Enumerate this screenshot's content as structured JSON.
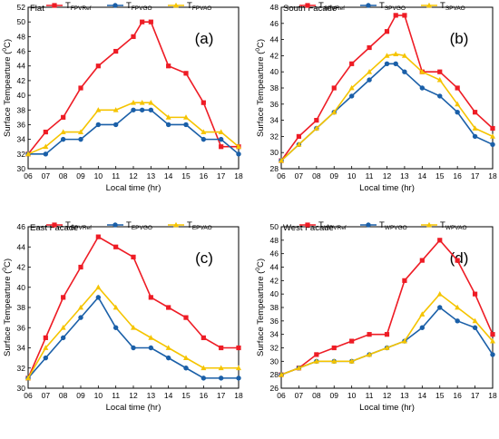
{
  "chart_data": [
    {
      "type": "line",
      "panel_label": "(a)",
      "corner_title": "Flat",
      "xlabel": "Local time (hr)",
      "ylabel": "Surface Tempearture (°C)",
      "ylabel_parts": [
        "Surface Tempearture (",
        "0",
        "C)"
      ],
      "xlim": [
        6,
        18
      ],
      "ylim": [
        30,
        52
      ],
      "yticks": [
        30,
        32,
        34,
        36,
        38,
        40,
        42,
        44,
        46,
        48,
        50,
        52
      ],
      "x": [
        6,
        7,
        8,
        9,
        10,
        11,
        12,
        12.5,
        13,
        14,
        15,
        16,
        17,
        18
      ],
      "xtick_labels": [
        "06",
        "07",
        "08",
        "09",
        "10",
        "11",
        "12",
        "13",
        "14",
        "15",
        "16",
        "17",
        "18"
      ],
      "series": [
        {
          "name": "TFPVRef",
          "label_base": "T",
          "label_sub": "FPVRef",
          "color": "#ee1c25",
          "marker": "square",
          "values": [
            32,
            35,
            37,
            41,
            44,
            46,
            48,
            50,
            50,
            44,
            43,
            39,
            33,
            33
          ]
        },
        {
          "name": "TFPVGO",
          "label_base": "T",
          "label_sub": "FPVGO",
          "color": "#1a5fa8",
          "marker": "circle",
          "values": [
            32,
            32,
            34,
            34,
            36,
            36,
            38,
            38,
            38,
            36,
            36,
            34,
            34,
            32
          ]
        },
        {
          "name": "TFPVAO",
          "label_base": "T",
          "label_sub": "FPVAO",
          "color": "#f5c400",
          "marker": "triangle",
          "values": [
            32,
            33,
            35,
            35,
            38,
            38,
            39,
            39,
            39,
            37,
            37,
            35,
            35,
            33
          ]
        }
      ]
    },
    {
      "type": "line",
      "panel_label": "(b)",
      "corner_title": "South Facade",
      "xlabel": "Local time (hr)",
      "ylabel": "Surface Tempearture (°C)",
      "ylabel_parts": [
        "Surface Tempearture (",
        "0",
        "C)"
      ],
      "xlim": [
        6,
        18
      ],
      "ylim": [
        28,
        48
      ],
      "yticks": [
        28,
        30,
        32,
        34,
        36,
        38,
        40,
        42,
        44,
        46,
        48
      ],
      "x": [
        6,
        7,
        8,
        9,
        10,
        11,
        12,
        12.5,
        13,
        14,
        15,
        16,
        17,
        18
      ],
      "xtick_labels": [
        "06",
        "07",
        "08",
        "09",
        "10",
        "11",
        "12",
        "13",
        "14",
        "15",
        "16",
        "17",
        "18"
      ],
      "series": [
        {
          "name": "TSPVRef",
          "label_base": "T",
          "label_sub": "SPVRef",
          "color": "#ee1c25",
          "marker": "square",
          "values": [
            29,
            32,
            34,
            38,
            41,
            43,
            45,
            47,
            47,
            40,
            40,
            38,
            35,
            33
          ]
        },
        {
          "name": "TSPVGO",
          "label_base": "T",
          "label_sub": "SPVGO",
          "color": "#1a5fa8",
          "marker": "circle",
          "values": [
            29,
            31,
            33,
            35,
            37,
            39,
            41,
            41,
            40,
            38,
            37,
            35,
            32,
            31
          ]
        },
        {
          "name": "TSPVAO",
          "label_base": "T",
          "label_sub": "SPVAO",
          "color": "#f5c400",
          "marker": "triangle",
          "values": [
            29,
            31,
            33,
            35,
            38,
            40,
            42,
            42.2,
            42,
            40,
            39,
            36,
            33,
            32
          ]
        }
      ]
    },
    {
      "type": "line",
      "panel_label": "(c)",
      "corner_title": "East Facade",
      "xlabel": "Local time (hr)",
      "ylabel": "Surface Tempearture (°C)",
      "ylabel_parts": [
        "Surface Tempearture (",
        "0",
        "C)"
      ],
      "xlim": [
        6,
        18
      ],
      "ylim": [
        30,
        46
      ],
      "yticks": [
        30,
        32,
        34,
        36,
        38,
        40,
        42,
        44,
        46
      ],
      "x": [
        6,
        7,
        8,
        9,
        10,
        11,
        12,
        13,
        14,
        15,
        16,
        17,
        18
      ],
      "xtick_labels": [
        "06",
        "07",
        "08",
        "09",
        "10",
        "11",
        "12",
        "13",
        "14",
        "15",
        "16",
        "17",
        "18"
      ],
      "series": [
        {
          "name": "TEPVRef",
          "label_base": "T",
          "label_sub": "EPVRef",
          "color": "#ee1c25",
          "marker": "square",
          "values": [
            31,
            35,
            39,
            42,
            45,
            44,
            43,
            39,
            38,
            37,
            35,
            34,
            34
          ]
        },
        {
          "name": "TEPVGO",
          "label_base": "T",
          "label_sub": "EPVGO",
          "color": "#1a5fa8",
          "marker": "circle",
          "values": [
            31,
            33,
            35,
            37,
            39,
            36,
            34,
            34,
            33,
            32,
            31,
            31,
            31
          ]
        },
        {
          "name": "TEPVAO",
          "label_base": "T",
          "label_sub": "EPVAO",
          "color": "#f5c400",
          "marker": "triangle",
          "values": [
            31,
            34,
            36,
            38,
            40,
            38,
            36,
            35,
            34,
            33,
            32,
            32,
            32
          ]
        }
      ]
    },
    {
      "type": "line",
      "panel_label": "(d)",
      "corner_title": "West Facade",
      "xlabel": "Local time (hr)",
      "ylabel": "Surface Tempearture (°C)",
      "ylabel_parts": [
        "Surface Tempearture (",
        "0",
        "C)"
      ],
      "xlim": [
        6,
        18
      ],
      "ylim": [
        26,
        50
      ],
      "yticks": [
        26,
        28,
        30,
        32,
        34,
        36,
        38,
        40,
        42,
        44,
        46,
        48,
        50
      ],
      "x": [
        6,
        7,
        8,
        9,
        10,
        11,
        12,
        13,
        14,
        15,
        16,
        17,
        18
      ],
      "xtick_labels": [
        "06",
        "07",
        "08",
        "09",
        "10",
        "11",
        "12",
        "13",
        "14",
        "15",
        "16",
        "17",
        "18"
      ],
      "series": [
        {
          "name": "TWPVRef",
          "label_base": "T",
          "label_sub": "WPVRef",
          "color": "#ee1c25",
          "marker": "square",
          "values": [
            28,
            29,
            31,
            32,
            33,
            34,
            34,
            42,
            45,
            48,
            45,
            40,
            34
          ]
        },
        {
          "name": "TWPVGO",
          "label_base": "T",
          "label_sub": "WPVGO",
          "color": "#1a5fa8",
          "marker": "circle",
          "values": [
            28,
            29,
            30,
            30,
            30,
            31,
            32,
            33,
            35,
            38,
            36,
            35,
            31
          ]
        },
        {
          "name": "TWPVAO",
          "label_base": "T",
          "label_sub": "WPVAO",
          "color": "#f5c400",
          "marker": "triangle",
          "values": [
            28,
            29,
            30,
            30,
            30,
            31,
            32,
            33,
            37,
            40,
            38,
            36,
            33
          ]
        }
      ]
    }
  ]
}
